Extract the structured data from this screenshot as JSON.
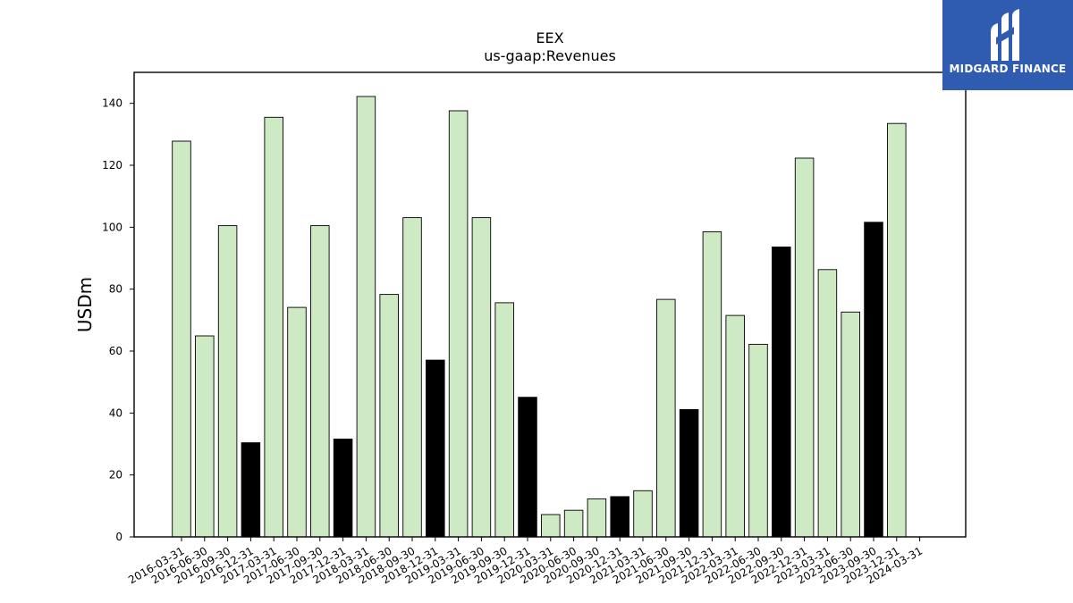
{
  "chart_data": {
    "type": "bar",
    "title": "EEX",
    "subtitle": "us-gaap:Revenues",
    "xlabel": "",
    "ylabel": "USDm",
    "ylim": [
      0,
      150
    ],
    "yticks": [
      0,
      20,
      40,
      60,
      80,
      100,
      120,
      140
    ],
    "grid": false,
    "categories": [
      "2016-03-31",
      "2016-06-30",
      "2016-09-30",
      "2016-12-31",
      "2017-03-31",
      "2017-06-30",
      "2017-09-30",
      "2017-12-31",
      "2018-03-31",
      "2018-06-30",
      "2018-09-30",
      "2018-12-31",
      "2019-03-31",
      "2019-06-30",
      "2019-09-30",
      "2019-12-31",
      "2020-03-31",
      "2020-06-30",
      "2020-09-30",
      "2020-12-31",
      "2021-03-31",
      "2021-06-30",
      "2021-09-30",
      "2021-12-31",
      "2022-03-31",
      "2022-06-30",
      "2022-09-30",
      "2022-12-31",
      "2023-03-31",
      "2023-06-30",
      "2023-09-30",
      "2023-12-31",
      "2024-03-31"
    ],
    "values": [
      127.8,
      64.9,
      100.5,
      30.4,
      135.5,
      74.1,
      100.5,
      31.6,
      142.2,
      78.3,
      103.1,
      57.1,
      137.6,
      103.1,
      75.6,
      45.1,
      7.2,
      8.6,
      12.3,
      13.0,
      14.9,
      76.7,
      41.1,
      98.5,
      71.5,
      62.2,
      93.6,
      122.3,
      86.3,
      72.6,
      101.6,
      133.5,
      0
    ],
    "bar_colors": [
      "#cdeac5",
      "#cdeac5",
      "#cdeac5",
      "#000000",
      "#cdeac5",
      "#cdeac5",
      "#cdeac5",
      "#000000",
      "#cdeac5",
      "#cdeac5",
      "#cdeac5",
      "#000000",
      "#cdeac5",
      "#cdeac5",
      "#cdeac5",
      "#000000",
      "#cdeac5",
      "#cdeac5",
      "#cdeac5",
      "#000000",
      "#cdeac5",
      "#cdeac5",
      "#000000",
      "#cdeac5",
      "#cdeac5",
      "#cdeac5",
      "#000000",
      "#cdeac5",
      "#cdeac5",
      "#cdeac5",
      "#000000",
      "#cdeac5",
      "#cdeac5"
    ]
  },
  "logo": {
    "text": "MIDGARD FINANCE",
    "background": "#2f5bb0"
  }
}
